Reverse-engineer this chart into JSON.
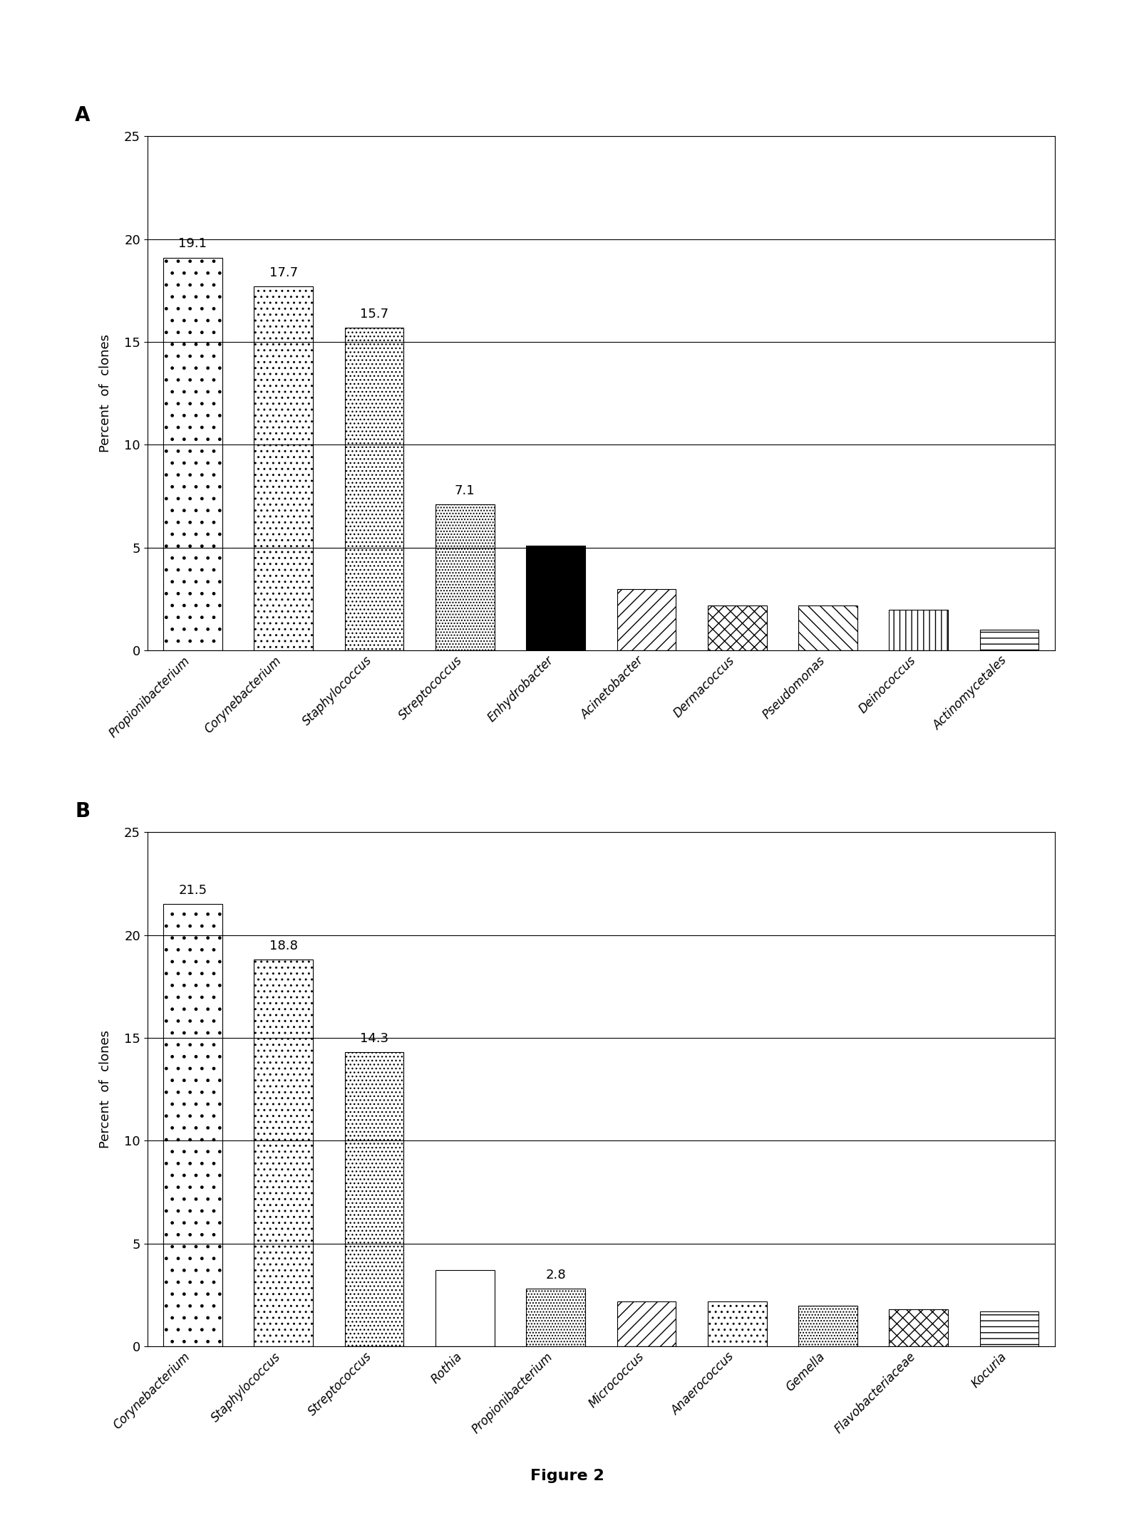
{
  "chart_A": {
    "categories": [
      "Propionibacterium",
      "Corynebacterium",
      "Staphylococcus",
      "Streptococcus",
      "Enhydrobacter",
      "Acinetobacter",
      "Dermacoccus",
      "Pseudomonas",
      "Deinococcus",
      "Actinomycetales"
    ],
    "values": [
      19.1,
      17.7,
      15.7,
      7.1,
      5.1,
      3.0,
      2.2,
      2.2,
      2.0,
      1.0
    ],
    "bar_configs": [
      {
        "facecolor": "white",
        "hatch": ".",
        "edgecolor": "black"
      },
      {
        "facecolor": "white",
        "hatch": "..",
        "edgecolor": "black"
      },
      {
        "facecolor": "white",
        "hatch": "...",
        "edgecolor": "black"
      },
      {
        "facecolor": "white",
        "hatch": "....",
        "edgecolor": "black"
      },
      {
        "facecolor": "black",
        "hatch": "",
        "edgecolor": "black"
      },
      {
        "facecolor": "white",
        "hatch": "//",
        "edgecolor": "black"
      },
      {
        "facecolor": "white",
        "hatch": "xx",
        "edgecolor": "black"
      },
      {
        "facecolor": "white",
        "hatch": "\\\\",
        "edgecolor": "black"
      },
      {
        "facecolor": "white",
        "hatch": "||",
        "edgecolor": "black"
      },
      {
        "facecolor": "white",
        "hatch": "--",
        "edgecolor": "black"
      }
    ],
    "label_values": [
      19.1,
      17.7,
      15.7,
      7.1,
      null,
      null,
      null,
      null,
      null,
      null
    ],
    "label": "A"
  },
  "chart_B": {
    "categories": [
      "Corynebacterium",
      "Staphylococcus",
      "Streptococcus",
      "Rothia",
      "Propionibacterium",
      "Micrococcus",
      "Anaerococcus",
      "Gemella",
      "Flavobacteriaceae",
      "Kocuria"
    ],
    "values": [
      21.5,
      18.8,
      14.3,
      3.7,
      2.8,
      2.2,
      2.2,
      2.0,
      1.8,
      1.7
    ],
    "bar_configs": [
      {
        "facecolor": "white",
        "hatch": ".",
        "edgecolor": "black"
      },
      {
        "facecolor": "white",
        "hatch": "..",
        "edgecolor": "black"
      },
      {
        "facecolor": "white",
        "hatch": "...",
        "edgecolor": "black"
      },
      {
        "facecolor": "white",
        "hatch": "=",
        "edgecolor": "black"
      },
      {
        "facecolor": "white",
        "hatch": "....",
        "edgecolor": "black"
      },
      {
        "facecolor": "white",
        "hatch": "//",
        "edgecolor": "black"
      },
      {
        "facecolor": "white",
        "hatch": "..",
        "edgecolor": "black"
      },
      {
        "facecolor": "white",
        "hatch": "....",
        "edgecolor": "black"
      },
      {
        "facecolor": "white",
        "hatch": "xx",
        "edgecolor": "black"
      },
      {
        "facecolor": "white",
        "hatch": "--",
        "edgecolor": "black"
      }
    ],
    "label_values": [
      21.5,
      18.8,
      14.3,
      null,
      2.8,
      null,
      null,
      null,
      null,
      null
    ],
    "label": "B"
  },
  "ylabel": "Percent  of  clones",
  "ylim": [
    0,
    25
  ],
  "yticks": [
    0,
    5,
    10,
    15,
    20,
    25
  ],
  "figure_label": "Figure 2",
  "background_color": "#ffffff"
}
